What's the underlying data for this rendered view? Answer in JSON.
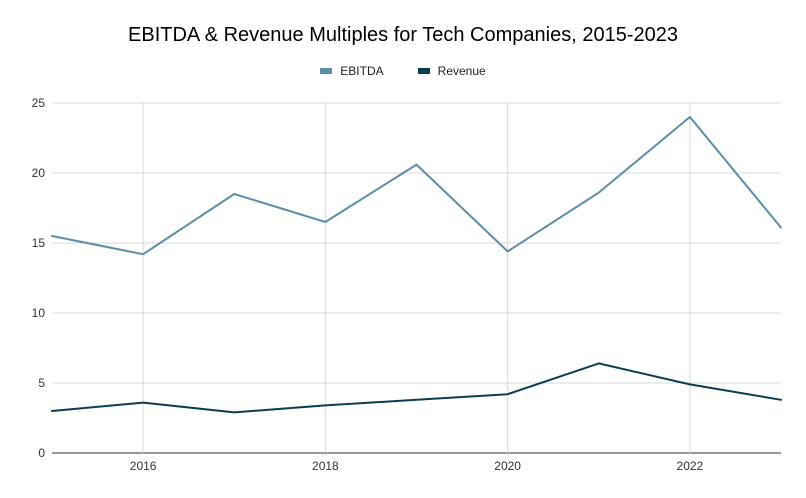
{
  "chart_data": {
    "type": "line",
    "title": "EBITDA & Revenue Multiples for Tech Companies, 2015-2023",
    "xlabel": "",
    "ylabel": "",
    "x": [
      2015,
      2016,
      2017,
      2018,
      2019,
      2020,
      2021,
      2022,
      2023
    ],
    "xlim": [
      2015,
      2023
    ],
    "ylim": [
      0,
      25
    ],
    "x_ticks": [
      2016,
      2018,
      2020,
      2022
    ],
    "x_tick_labels": [
      "2016",
      "2018",
      "2020",
      "2022"
    ],
    "y_ticks": [
      0,
      5,
      10,
      15,
      20,
      25
    ],
    "y_tick_labels": [
      "0",
      "5",
      "10",
      "15",
      "20",
      "25"
    ],
    "grid": true,
    "legend_position": "top-center",
    "series": [
      {
        "name": "EBITDA",
        "color": "#5b8fa8",
        "values": [
          15.5,
          14.2,
          18.5,
          16.5,
          20.6,
          14.4,
          18.6,
          24.0,
          16.1
        ]
      },
      {
        "name": "Revenue",
        "color": "#0b3d52",
        "values": [
          3.0,
          3.6,
          2.9,
          3.4,
          3.8,
          4.2,
          6.4,
          4.9,
          3.8
        ]
      }
    ]
  }
}
